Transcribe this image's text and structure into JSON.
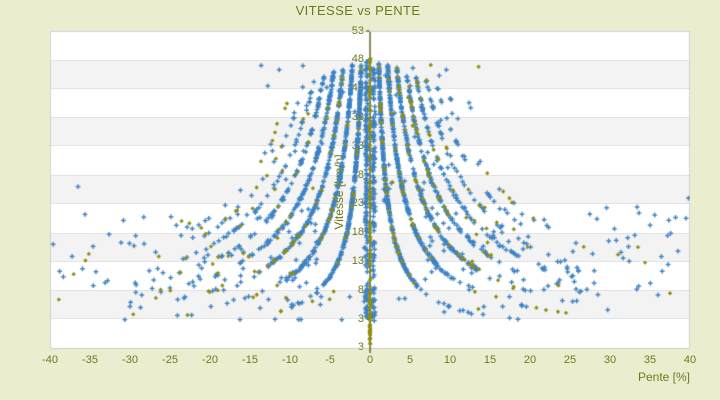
{
  "page": {
    "background_color": "#eaeecf"
  },
  "chart_data": {
    "type": "scatter",
    "title": "VITESSE vs PENTE",
    "xlabel": "Pente [%]",
    "ylabel": "Vitesse [km/h]",
    "xlim": [
      -40,
      40
    ],
    "ylim": [
      -2,
      53
    ],
    "x_ticks": [
      -40,
      -35,
      -30,
      -25,
      -20,
      -15,
      -10,
      -5,
      0,
      5,
      10,
      15,
      20,
      25,
      30,
      35,
      40
    ],
    "y_ticks": [
      53,
      48,
      43,
      38,
      33,
      28,
      23,
      18,
      13,
      8,
      3
    ],
    "y_axis_bottom_label": "3",
    "grid": "alternating-horizontal-bands",
    "legend": "none",
    "axis_position": "y-axis drawn vertically at pente=0 in plot center",
    "colors": {
      "primary_marker": "#3d82c4",
      "secondary_marker": "#8e8d12",
      "axis_line": "#4c520a",
      "text": "#6d7a1c",
      "band_light": "#ffffff",
      "band_dark": "#f3f3f3",
      "plot_border": "#cfcfcf"
    },
    "series": [
      {
        "name": "vitesse-pente-points",
        "marker": "plus",
        "color": "#3d82c4"
      },
      {
        "name": "vitesse-pente-points-secondaires",
        "marker": "diamond",
        "color": "#8e8d12"
      }
    ],
    "pattern": {
      "description": "dense hyperbolic arms v = C*n/|pente| fanning from the center axis on both sides, a dense vertical column of points at pente ~ 0 spanning v=3..48, olive points on the pente=0 axis, and a sparse outlier cloud mostly between v=3 and v=30 out to |pente|=40",
      "seed": 20,
      "hyperbola_constant": 52,
      "arms_per_side": 8,
      "arm_point_counts": [
        300,
        240,
        190,
        140,
        85,
        48,
        24,
        12
      ],
      "arm_p_max": [
        6,
        10.5,
        14,
        16.5,
        19,
        20.5,
        22,
        23
      ],
      "arm_v_top": 48.2,
      "center_columns": {
        "left_count": 170,
        "right_count": 140,
        "axis_count": 95,
        "axis_low_count": 30
      },
      "outliers": {
        "blue_count": 235,
        "olive_count": 52
      },
      "edge_points_blue": [
        [
          -39.6,
          16.0
        ],
        [
          -38.8,
          11.3
        ],
        [
          -36.5,
          26.0
        ],
        [
          39.8,
          24.0
        ],
        [
          38.5,
          14.8
        ],
        [
          39.5,
          20.5
        ],
        [
          36.0,
          7.2
        ],
        [
          37.2,
          17.5
        ],
        [
          -30.0,
          5.2
        ]
      ],
      "edge_points_olive": [
        [
          -38.9,
          6.4
        ],
        [
          37.5,
          7.5
        ],
        [
          31.0,
          14.2
        ],
        [
          23.5,
          4.3
        ],
        [
          24.5,
          4.1
        ],
        [
          22.0,
          4.6
        ],
        [
          33.5,
          15.5
        ],
        [
          -7.2,
          6.1
        ]
      ]
    }
  }
}
